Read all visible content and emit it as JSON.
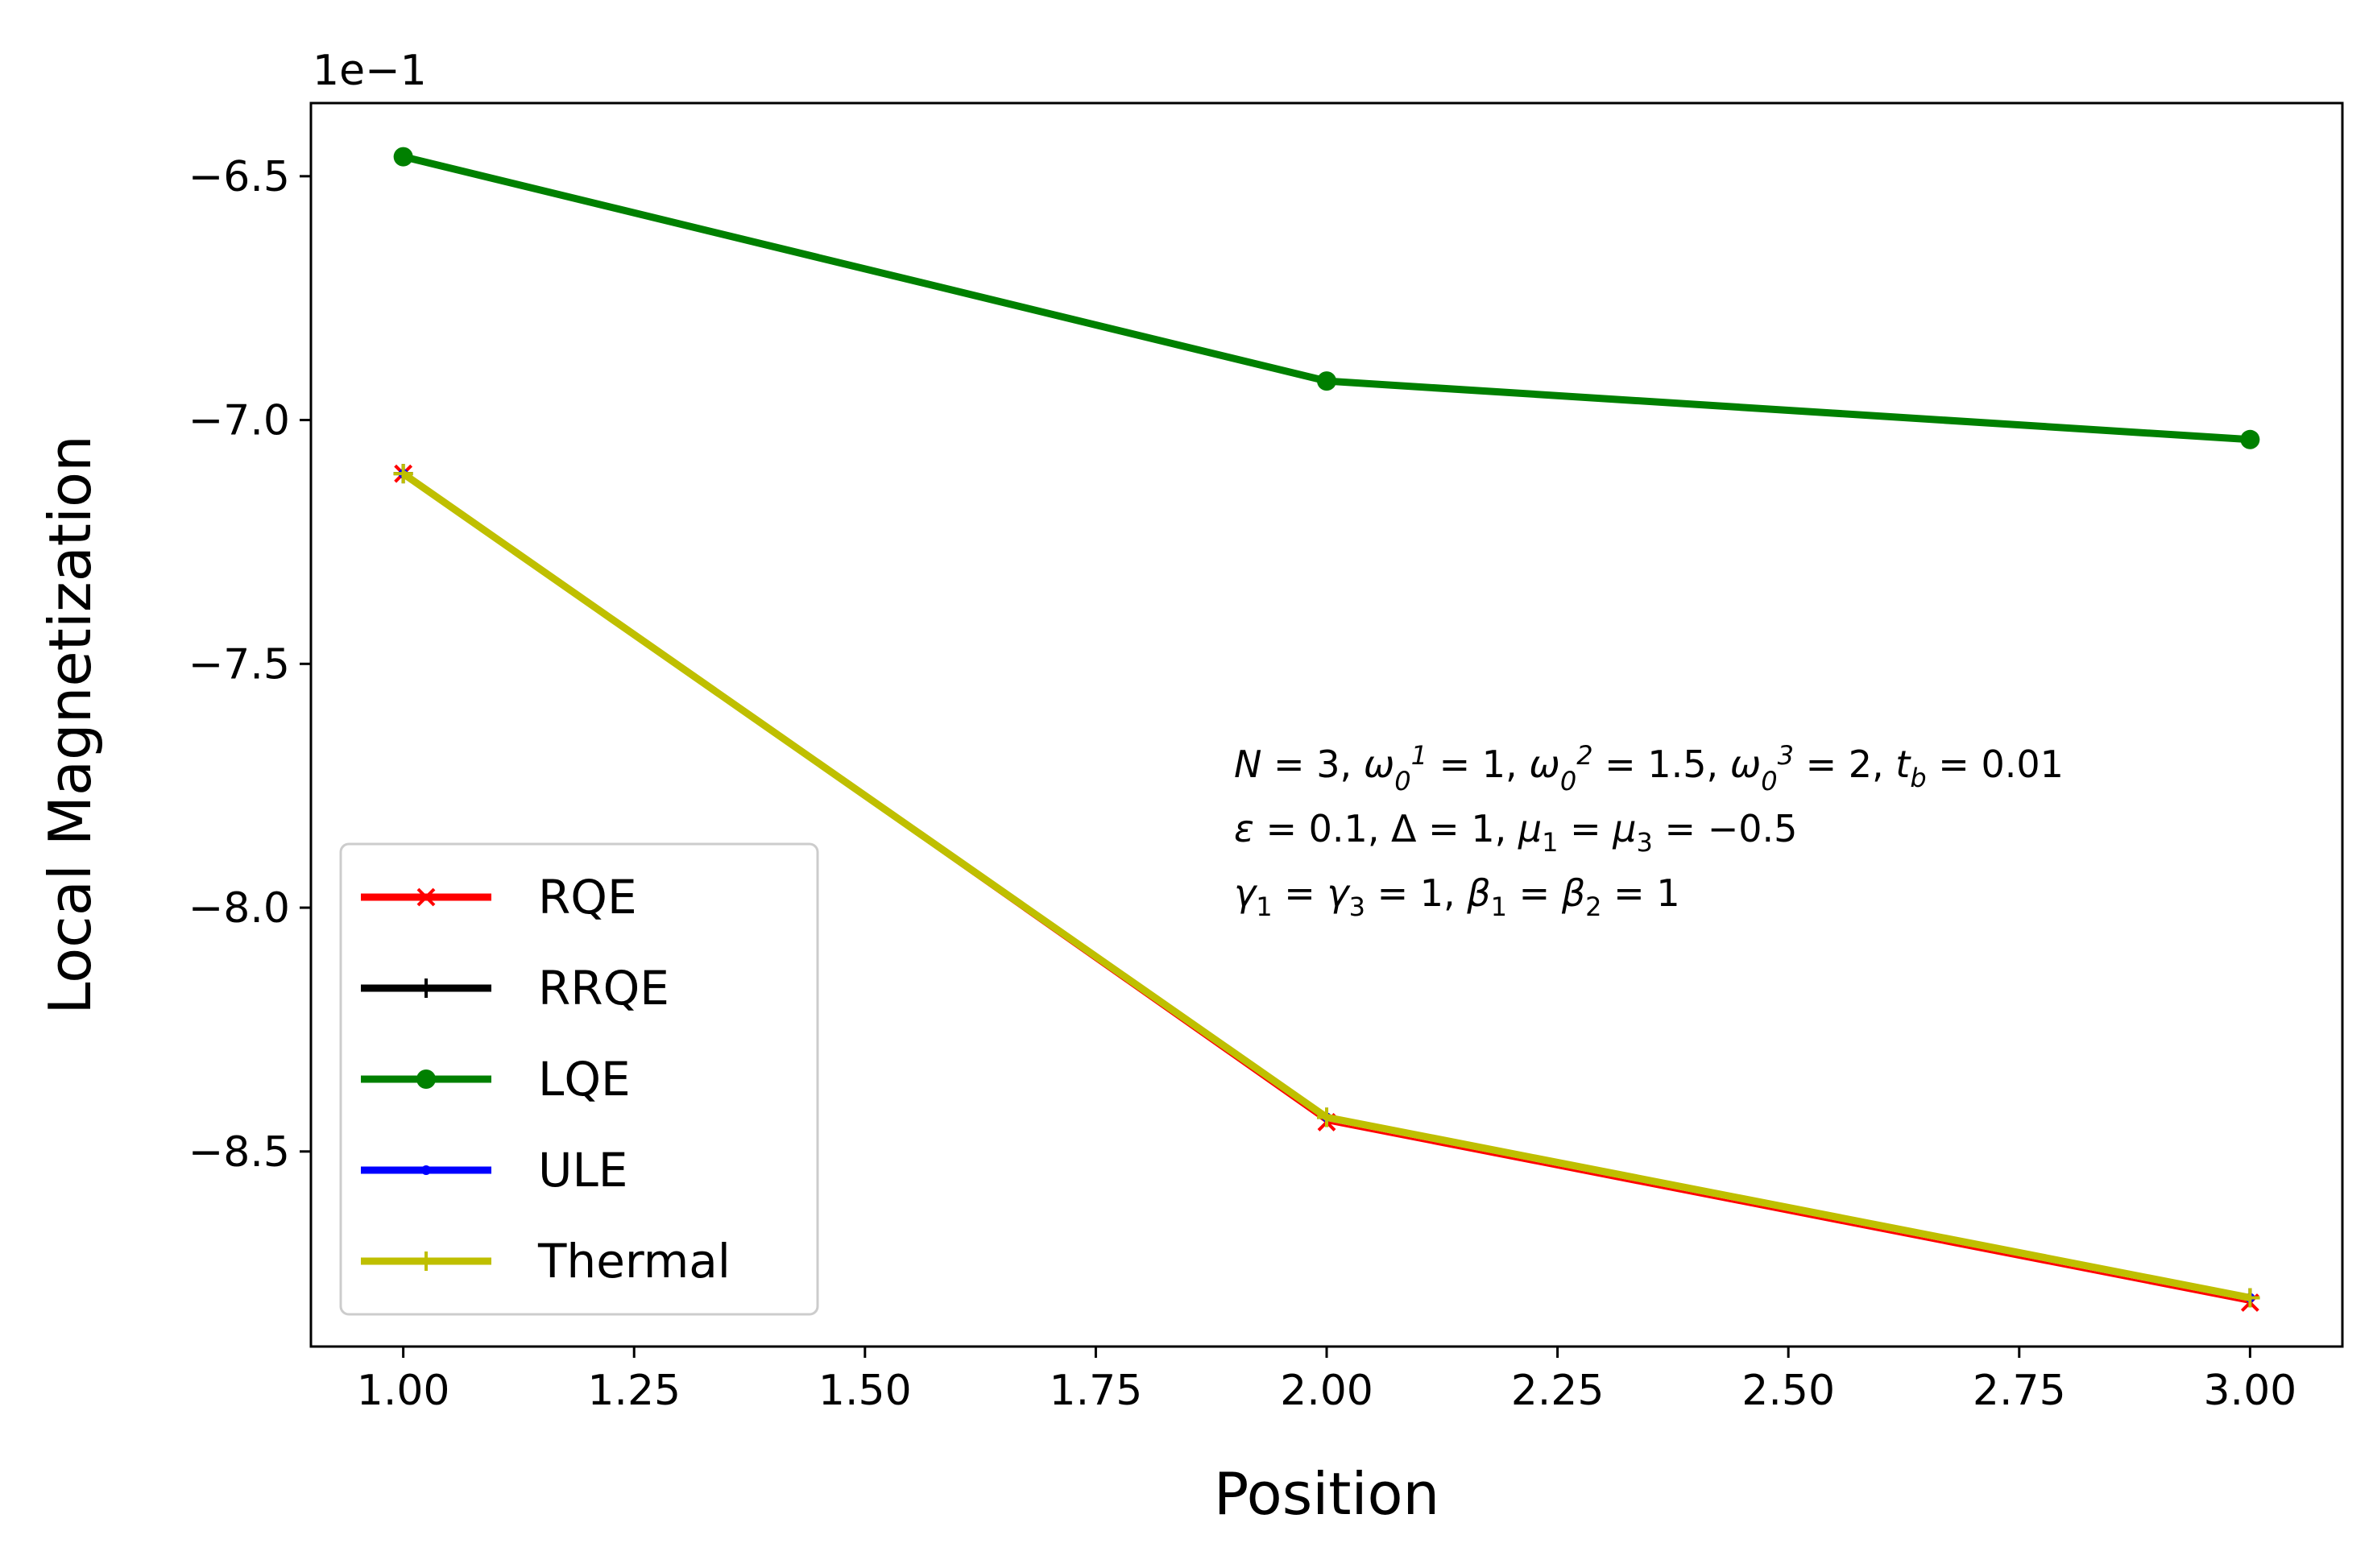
{
  "chart_data": {
    "type": "line",
    "xlabel": "Position",
    "ylabel": "Local Magnetization",
    "y_offset_label": "1e−1",
    "xlim": [
      0.9,
      3.1
    ],
    "ylim": [
      -8.9,
      -6.35
    ],
    "x_ticks": [
      1.0,
      1.25,
      1.5,
      1.75,
      2.0,
      2.25,
      2.5,
      2.75,
      3.0
    ],
    "x_tick_labels": [
      "1.00",
      "1.25",
      "1.50",
      "1.75",
      "2.00",
      "2.25",
      "2.50",
      "2.75",
      "3.00"
    ],
    "y_ticks": [
      -6.5,
      -7.0,
      -7.5,
      -8.0,
      -8.5
    ],
    "y_tick_labels": [
      "−6.5",
      "−7.0",
      "−7.5",
      "−8.0",
      "−8.5"
    ],
    "x": [
      1,
      2,
      3
    ],
    "series": [
      {
        "name": "RQE",
        "color": "#ff0000",
        "marker": "x",
        "values": [
          -7.11,
          -8.44,
          -8.81
        ]
      },
      {
        "name": "RRQE",
        "color": "#000000",
        "marker": "plus",
        "values": [
          -7.11,
          -8.43,
          -8.8
        ]
      },
      {
        "name": "LQE",
        "color": "#008000",
        "marker": "circle",
        "values": [
          -6.46,
          -6.92,
          -7.04
        ]
      },
      {
        "name": "ULE",
        "color": "#0000ff",
        "marker": "dot",
        "values": [
          -7.11,
          -8.43,
          -8.8
        ]
      },
      {
        "name": "Thermal",
        "color": "#bfbf00",
        "marker": "plus",
        "values": [
          -7.11,
          -8.43,
          -8.8
        ]
      }
    ],
    "legend_position": "lower-left",
    "grid": false,
    "annotation_lines": [
      "N = 3, ω₀¹ = 1, ω₀² = 1.5, ω₀³ = 2, t_b = 0.01",
      "ε = 0.1, Δ = 1, μ₁ = μ₃ = −0.5",
      "γ₁ = γ₃ = 1, β₁ = β₂ = 1"
    ]
  }
}
